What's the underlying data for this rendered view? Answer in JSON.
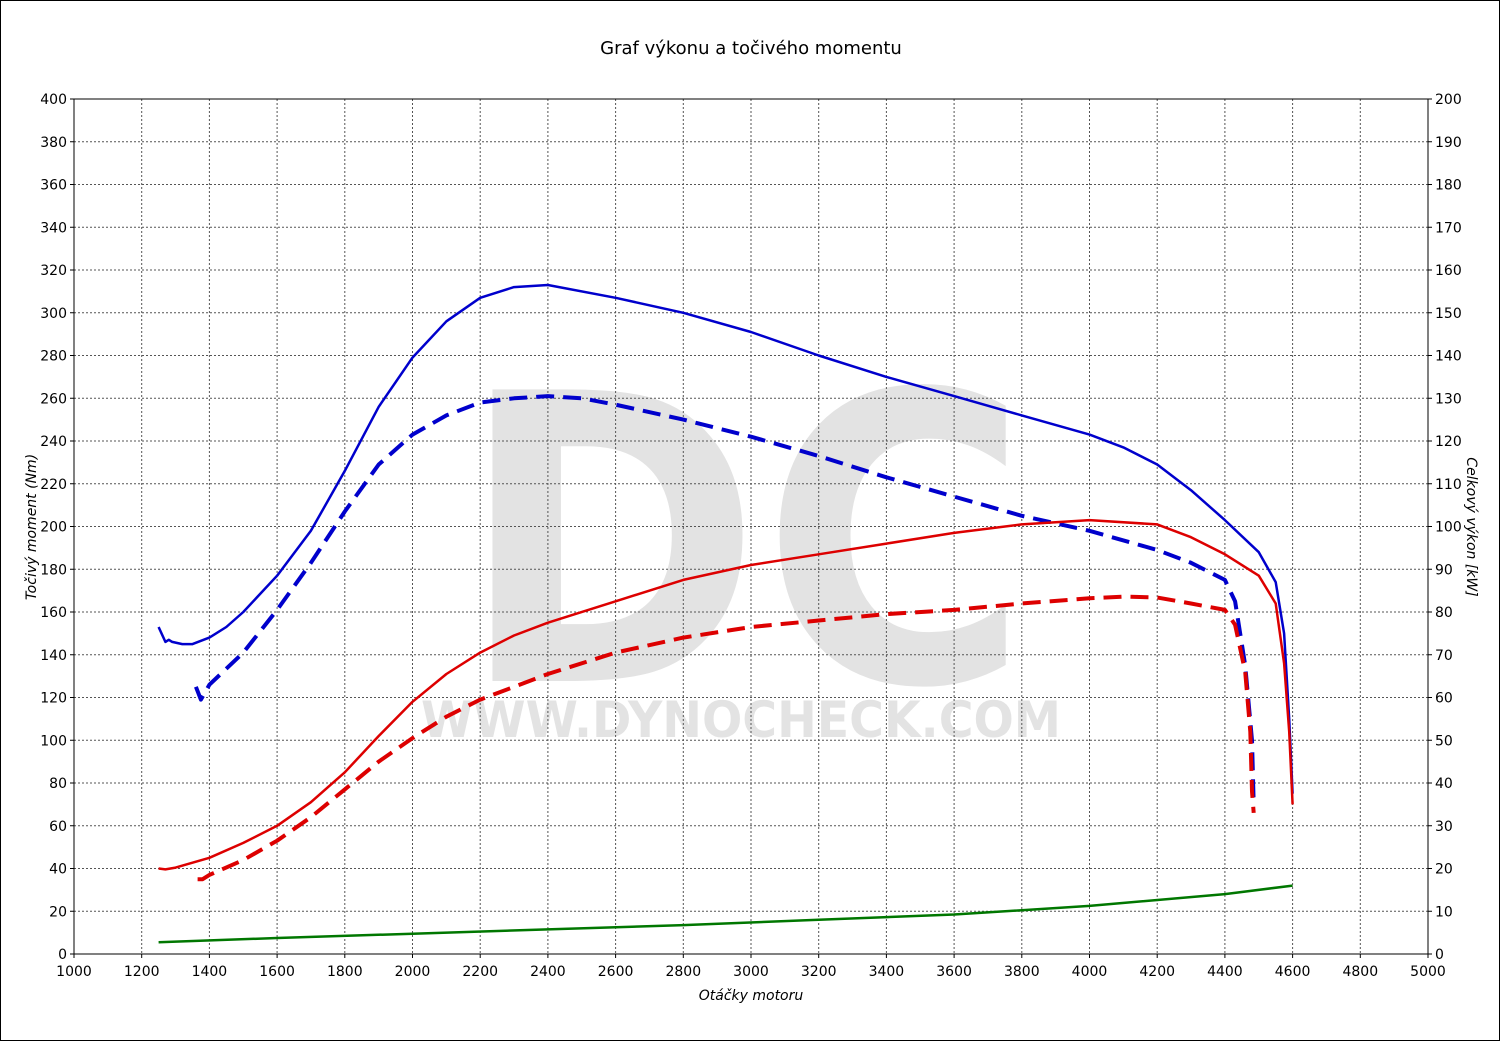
{
  "chart_data": {
    "type": "line",
    "title": "Graf výkonu a točivého momentu",
    "xlabel": "Otáčky motoru",
    "ylabel_left": "Točivý moment (Nm)",
    "ylabel_right": "Celkový výkon [kW]",
    "xlim": [
      1000,
      5000
    ],
    "x_ticks": [
      1000,
      1200,
      1400,
      1600,
      1800,
      2000,
      2200,
      2400,
      2600,
      2800,
      3000,
      3200,
      3400,
      3600,
      3800,
      4000,
      4200,
      4400,
      4600,
      4800,
      5000
    ],
    "ylim_left": [
      0,
      400
    ],
    "y_ticks_left": [
      0,
      20,
      40,
      60,
      80,
      100,
      120,
      140,
      160,
      180,
      200,
      220,
      240,
      260,
      280,
      300,
      320,
      340,
      360,
      380,
      400
    ],
    "ylim_right": [
      0,
      200
    ],
    "y_ticks_right": [
      0,
      10,
      20,
      30,
      40,
      50,
      60,
      70,
      80,
      90,
      100,
      110,
      120,
      130,
      140,
      150,
      160,
      170,
      180,
      190,
      200
    ],
    "grid": true,
    "watermark": {
      "logo": "DC",
      "url": "WWW.DYNOCHECK.COM"
    },
    "series": [
      {
        "color": "#0000cc",
        "style": "solid",
        "axis": "left",
        "points": [
          [
            1250,
            153
          ],
          [
            1270,
            146
          ],
          [
            1280,
            147
          ],
          [
            1290,
            146
          ],
          [
            1320,
            145
          ],
          [
            1350,
            145
          ],
          [
            1400,
            148
          ],
          [
            1450,
            153
          ],
          [
            1500,
            160
          ],
          [
            1600,
            177
          ],
          [
            1700,
            198
          ],
          [
            1800,
            226
          ],
          [
            1900,
            256
          ],
          [
            2000,
            279
          ],
          [
            2100,
            296
          ],
          [
            2200,
            307
          ],
          [
            2300,
            312
          ],
          [
            2400,
            313
          ],
          [
            2600,
            307
          ],
          [
            2800,
            300
          ],
          [
            3000,
            291
          ],
          [
            3200,
            280
          ],
          [
            3400,
            270
          ],
          [
            3600,
            261
          ],
          [
            3800,
            252
          ],
          [
            4000,
            243
          ],
          [
            4100,
            237
          ],
          [
            4200,
            229
          ],
          [
            4300,
            217
          ],
          [
            4400,
            203
          ],
          [
            4500,
            188
          ],
          [
            4550,
            174
          ],
          [
            4575,
            150
          ],
          [
            4590,
            110
          ],
          [
            4600,
            75
          ]
        ]
      },
      {
        "color": "#0000cc",
        "style": "dashed",
        "axis": "left",
        "points": [
          [
            1360,
            125
          ],
          [
            1375,
            119
          ],
          [
            1400,
            126
          ],
          [
            1500,
            141
          ],
          [
            1600,
            161
          ],
          [
            1700,
            183
          ],
          [
            1800,
            207
          ],
          [
            1900,
            229
          ],
          [
            2000,
            243
          ],
          [
            2100,
            252
          ],
          [
            2200,
            258
          ],
          [
            2300,
            260
          ],
          [
            2400,
            261
          ],
          [
            2500,
            260
          ],
          [
            2600,
            257
          ],
          [
            2800,
            250
          ],
          [
            3000,
            242
          ],
          [
            3200,
            233
          ],
          [
            3400,
            223
          ],
          [
            3600,
            214
          ],
          [
            3800,
            205
          ],
          [
            4000,
            198
          ],
          [
            4200,
            189
          ],
          [
            4300,
            183
          ],
          [
            4400,
            175
          ],
          [
            4430,
            165
          ],
          [
            4460,
            135
          ],
          [
            4480,
            100
          ],
          [
            4485,
            70
          ]
        ]
      },
      {
        "color": "#dd0000",
        "style": "solid",
        "axis": "right",
        "points": [
          [
            1250,
            20
          ],
          [
            1270,
            19.8
          ],
          [
            1300,
            20.2
          ],
          [
            1400,
            22.5
          ],
          [
            1500,
            26
          ],
          [
            1600,
            30
          ],
          [
            1700,
            35.5
          ],
          [
            1800,
            42.5
          ],
          [
            1900,
            51
          ],
          [
            2000,
            59
          ],
          [
            2100,
            65.5
          ],
          [
            2200,
            70.5
          ],
          [
            2300,
            74.5
          ],
          [
            2400,
            77.5
          ],
          [
            2600,
            82.5
          ],
          [
            2800,
            87.5
          ],
          [
            3000,
            91
          ],
          [
            3200,
            93.5
          ],
          [
            3400,
            96
          ],
          [
            3600,
            98.5
          ],
          [
            3800,
            100.5
          ],
          [
            4000,
            101.5
          ],
          [
            4200,
            100.5
          ],
          [
            4300,
            97.5
          ],
          [
            4400,
            93.5
          ],
          [
            4500,
            88.5
          ],
          [
            4550,
            82
          ],
          [
            4575,
            68
          ],
          [
            4590,
            52
          ],
          [
            4600,
            35
          ]
        ]
      },
      {
        "color": "#dd0000",
        "style": "dashed",
        "axis": "right",
        "points": [
          [
            1365,
            17.5
          ],
          [
            1380,
            17.5
          ],
          [
            1400,
            18.5
          ],
          [
            1500,
            22
          ],
          [
            1600,
            26.5
          ],
          [
            1700,
            32
          ],
          [
            1800,
            38.5
          ],
          [
            1900,
            45
          ],
          [
            2000,
            50.5
          ],
          [
            2100,
            55.5
          ],
          [
            2200,
            59.5
          ],
          [
            2400,
            65.5
          ],
          [
            2600,
            70.5
          ],
          [
            2800,
            74
          ],
          [
            3000,
            76.5
          ],
          [
            3200,
            78
          ],
          [
            3400,
            79.5
          ],
          [
            3600,
            80.5
          ],
          [
            3800,
            82
          ],
          [
            4000,
            83.2
          ],
          [
            4100,
            83.6
          ],
          [
            4200,
            83.4
          ],
          [
            4300,
            82
          ],
          [
            4400,
            80.5
          ],
          [
            4430,
            77
          ],
          [
            4460,
            66
          ],
          [
            4475,
            52
          ],
          [
            4480,
            38
          ],
          [
            4485,
            33
          ]
        ]
      },
      {
        "color": "#007700",
        "style": "solid",
        "axis": "left",
        "points": [
          [
            1250,
            5.5
          ],
          [
            1600,
            7.5
          ],
          [
            2000,
            9.5
          ],
          [
            2400,
            11.5
          ],
          [
            2800,
            13.5
          ],
          [
            3200,
            16
          ],
          [
            3600,
            18.5
          ],
          [
            4000,
            22.5
          ],
          [
            4400,
            28
          ],
          [
            4600,
            32
          ]
        ]
      }
    ]
  }
}
